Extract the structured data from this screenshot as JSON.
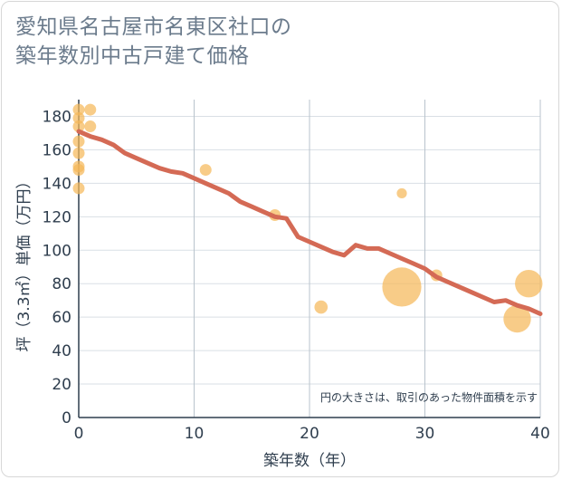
{
  "title_lines": [
    "愛知県名古屋市名東区社口の",
    "築年数別中古戸建て価格"
  ],
  "chart_data": {
    "type": "scatter",
    "title": "愛知県名古屋市名東区社口の築年数別中古戸建て価格",
    "xlabel": "築年数（年）",
    "ylabel": "坪（3.3㎡）単価（万円）",
    "xlim": [
      0,
      40
    ],
    "ylim": [
      0,
      190
    ],
    "xticks": [
      0,
      10,
      20,
      30,
      40
    ],
    "yticks": [
      0,
      20,
      40,
      60,
      80,
      100,
      120,
      140,
      160,
      180
    ],
    "grid": true,
    "annotation": "円の大きさは、取引のあった物件面積を示す",
    "colors": {
      "points": "#f5b85a",
      "line": "#d46a55",
      "grid": "#d9dfe5",
      "vgrid": "#b9c3cc"
    },
    "points": [
      {
        "x": 0,
        "y": 184,
        "size": 2
      },
      {
        "x": 0,
        "y": 179,
        "size": 2
      },
      {
        "x": 0,
        "y": 174,
        "size": 2
      },
      {
        "x": 0,
        "y": 165,
        "size": 2
      },
      {
        "x": 0,
        "y": 158,
        "size": 2
      },
      {
        "x": 0,
        "y": 150,
        "size": 2
      },
      {
        "x": 0,
        "y": 148,
        "size": 2
      },
      {
        "x": 0,
        "y": 137,
        "size": 2
      },
      {
        "x": 1,
        "y": 184,
        "size": 2
      },
      {
        "x": 1,
        "y": 174,
        "size": 2
      },
      {
        "x": 11,
        "y": 148,
        "size": 2
      },
      {
        "x": 17,
        "y": 121,
        "size": 2
      },
      {
        "x": 21,
        "y": 66,
        "size": 2.5
      },
      {
        "x": 28,
        "y": 134,
        "size": 1.5
      },
      {
        "x": 28,
        "y": 78,
        "size": 22
      },
      {
        "x": 31,
        "y": 85,
        "size": 2
      },
      {
        "x": 38,
        "y": 59,
        "size": 11
      },
      {
        "x": 39,
        "y": 80,
        "size": 11
      }
    ],
    "trend": {
      "x": [
        0,
        1,
        2,
        3,
        4,
        5,
        6,
        7,
        8,
        9,
        10,
        11,
        12,
        13,
        14,
        15,
        16,
        17,
        18,
        19,
        20,
        21,
        22,
        23,
        24,
        25,
        26,
        27,
        28,
        29,
        30,
        31,
        32,
        33,
        34,
        35,
        36,
        37,
        38,
        39,
        40
      ],
      "y": [
        171,
        168,
        166,
        163,
        158,
        155,
        152,
        149,
        147,
        146,
        143,
        140,
        137,
        134,
        129,
        126,
        123,
        120,
        119,
        108,
        105,
        102,
        99,
        97,
        103,
        101,
        101,
        98,
        95,
        92,
        89,
        84,
        81,
        78,
        75,
        72,
        69,
        70,
        67,
        65,
        62
      ]
    }
  }
}
